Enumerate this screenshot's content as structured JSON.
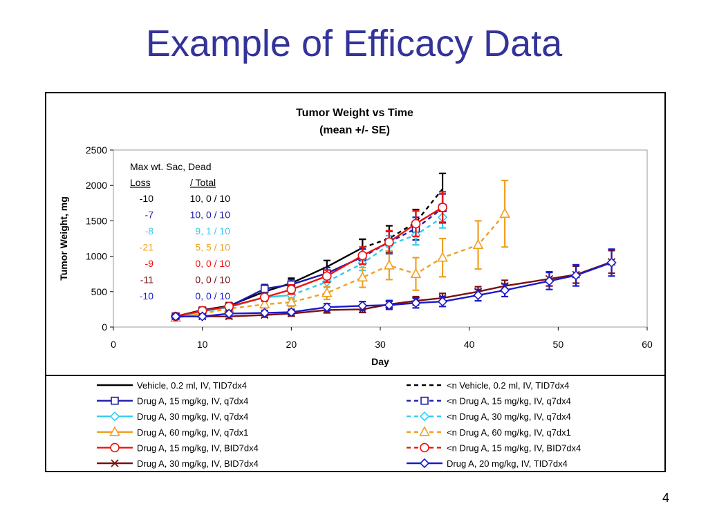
{
  "slide": {
    "title": "Example of Efficacy Data",
    "page_number": "4"
  },
  "chart_data": {
    "type": "line",
    "title": "Tumor Weight vs Time",
    "subtitle": "(mean +/- SE)",
    "xlabel": "Day",
    "ylabel": "Tumor Weight, mg",
    "xlim": [
      0,
      60
    ],
    "ylim": [
      0,
      2500
    ],
    "xticks": [
      0,
      10,
      20,
      30,
      40,
      50,
      60
    ],
    "yticks": [
      0,
      500,
      1000,
      1500,
      2000,
      2500
    ],
    "grid": false,
    "legend_position": "bottom",
    "series": [
      {
        "name": "Vehicle, 0.2 ml, IV, TID7dx4",
        "color": "#000000",
        "dash": "solid",
        "marker": "none",
        "x": [
          7,
          10,
          13,
          17,
          20,
          24,
          28
        ],
        "y": [
          150,
          240,
          300,
          500,
          620,
          850,
          1120
        ],
        "err": [
          40,
          40,
          45,
          60,
          70,
          90,
          120
        ]
      },
      {
        "name": "<n  Vehicle, 0.2 ml, IV, TID7dx4",
        "color": "#000000",
        "dash": "dashed",
        "marker": "none",
        "x": [
          28,
          31,
          34,
          37
        ],
        "y": [
          1120,
          1250,
          1480,
          1950
        ],
        "err": [
          120,
          180,
          180,
          220
        ]
      },
      {
        "name": "Drug A, 15 mg/kg, IV, q7dx4",
        "color": "#1a1aaa",
        "dash": "solid",
        "marker": "square",
        "x": [
          7,
          10,
          13,
          17,
          20,
          24,
          28
        ],
        "y": [
          150,
          230,
          290,
          540,
          600,
          760,
          990
        ],
        "err": [
          40,
          40,
          45,
          60,
          70,
          80,
          110
        ]
      },
      {
        "name": "<n  Drug A, 15 mg/kg, IV, q7dx4",
        "color": "#1a1aaa",
        "dash": "dashed",
        "marker": "square",
        "x": [
          28,
          31,
          34,
          37
        ],
        "y": [
          990,
          1200,
          1390,
          1680
        ],
        "err": [
          110,
          150,
          160,
          200
        ]
      },
      {
        "name": "Drug A, 30 mg/kg, IV, q7dx4",
        "color": "#33ccee",
        "dash": "solid",
        "marker": "diamond",
        "x": [
          7,
          10,
          13,
          17,
          20
        ],
        "y": [
          150,
          220,
          280,
          420,
          450
        ],
        "err": [
          40,
          40,
          45,
          55,
          60
        ]
      },
      {
        "name": "<n Drug A, 30 mg/kg, IV, q7dx4",
        "color": "#33ccee",
        "dash": "dashed",
        "marker": "diamond",
        "x": [
          20,
          24,
          28,
          31,
          34,
          37
        ],
        "y": [
          450,
          640,
          900,
          1160,
          1300,
          1550
        ],
        "err": [
          60,
          80,
          100,
          130,
          140,
          150
        ]
      },
      {
        "name": "Drug A, 60 mg/kg, IV, q7dx1",
        "color": "#f0a020",
        "dash": "solid",
        "marker": "triangle",
        "x": [
          7,
          10
        ],
        "y": [
          130,
          190
        ],
        "err": [
          30,
          35
        ]
      },
      {
        "name": "<n  Drug A, 60 mg/kg, IV, q7dx1",
        "color": "#f0a020",
        "dash": "dashed",
        "marker": "triangle",
        "x": [
          10,
          13,
          17,
          20,
          24,
          28,
          31,
          34,
          37,
          41,
          44
        ],
        "y": [
          190,
          260,
          320,
          350,
          480,
          700,
          870,
          750,
          980,
          1160,
          1600
        ],
        "err": [
          35,
          40,
          50,
          60,
          90,
          140,
          200,
          230,
          270,
          340,
          470
        ]
      },
      {
        "name": "Drug A, 15 mg/kg, IV, BID7dx4",
        "color": "#ee1111",
        "dash": "solid",
        "marker": "circle",
        "x": [
          7,
          10,
          13,
          17,
          20,
          24,
          28,
          31,
          34,
          37
        ],
        "y": [
          150,
          230,
          290,
          420,
          530,
          720,
          1010,
          1200,
          1460,
          1690
        ],
        "err": [
          40,
          40,
          45,
          55,
          65,
          85,
          120,
          160,
          180,
          220
        ]
      },
      {
        "name": "<n  Drug A, 15 mg/kg, IV, BID7dx4",
        "color": "#ee1111",
        "dash": "dashed",
        "marker": "circle",
        "x": [
          34,
          37
        ],
        "y": [
          1460,
          1690
        ],
        "err": [
          180,
          220
        ]
      },
      {
        "name": "Drug A, 30 mg/kg, IV, BID7dx4",
        "color": "#7a1010",
        "dash": "solid",
        "marker": "x",
        "x": [
          7,
          10,
          13,
          17,
          20,
          24,
          28,
          31,
          34,
          37,
          41,
          44,
          49,
          52,
          56
        ],
        "y": [
          150,
          150,
          150,
          170,
          190,
          240,
          250,
          320,
          370,
          410,
          500,
          580,
          680,
          740,
          920
        ],
        "err": [
          30,
          30,
          30,
          30,
          35,
          40,
          45,
          55,
          60,
          65,
          70,
          80,
          100,
          120,
          160
        ]
      },
      {
        "name": "Drug A, 20 mg/kg, IV, TID7dx4",
        "color": "#1a1acc",
        "dash": "solid",
        "marker": "diamond",
        "x": [
          7,
          10,
          13,
          17,
          20,
          24,
          28,
          31,
          34,
          37,
          41,
          44,
          49,
          52,
          56
        ],
        "y": [
          150,
          150,
          190,
          200,
          210,
          280,
          300,
          310,
          340,
          360,
          450,
          520,
          650,
          730,
          910
        ],
        "err": [
          30,
          30,
          35,
          35,
          40,
          50,
          60,
          60,
          70,
          70,
          80,
          90,
          120,
          150,
          190
        ]
      }
    ],
    "annotation": {
      "header_line1": "Max wt.  Sac, Dead",
      "header_loss": "Loss",
      "header_total": "/ Total",
      "rows": [
        {
          "loss": "-10",
          "sac": "10, 0 / 10",
          "color": "#000000"
        },
        {
          "loss": "-7",
          "sac": "10, 0 / 10",
          "color": "#1a1aaa"
        },
        {
          "loss": "-8",
          "sac": "9, 1 / 10",
          "color": "#33ccee"
        },
        {
          "loss": "-21",
          "sac": "5, 5 / 10",
          "color": "#f0a020"
        },
        {
          "loss": "-9",
          "sac": "0, 0 / 10",
          "color": "#ee1111"
        },
        {
          "loss": "-11",
          "sac": "0, 0 / 10",
          "color": "#7a1010"
        },
        {
          "loss": "-10",
          "sac": "0, 0 / 10",
          "color": "#1a1acc"
        }
      ]
    }
  }
}
